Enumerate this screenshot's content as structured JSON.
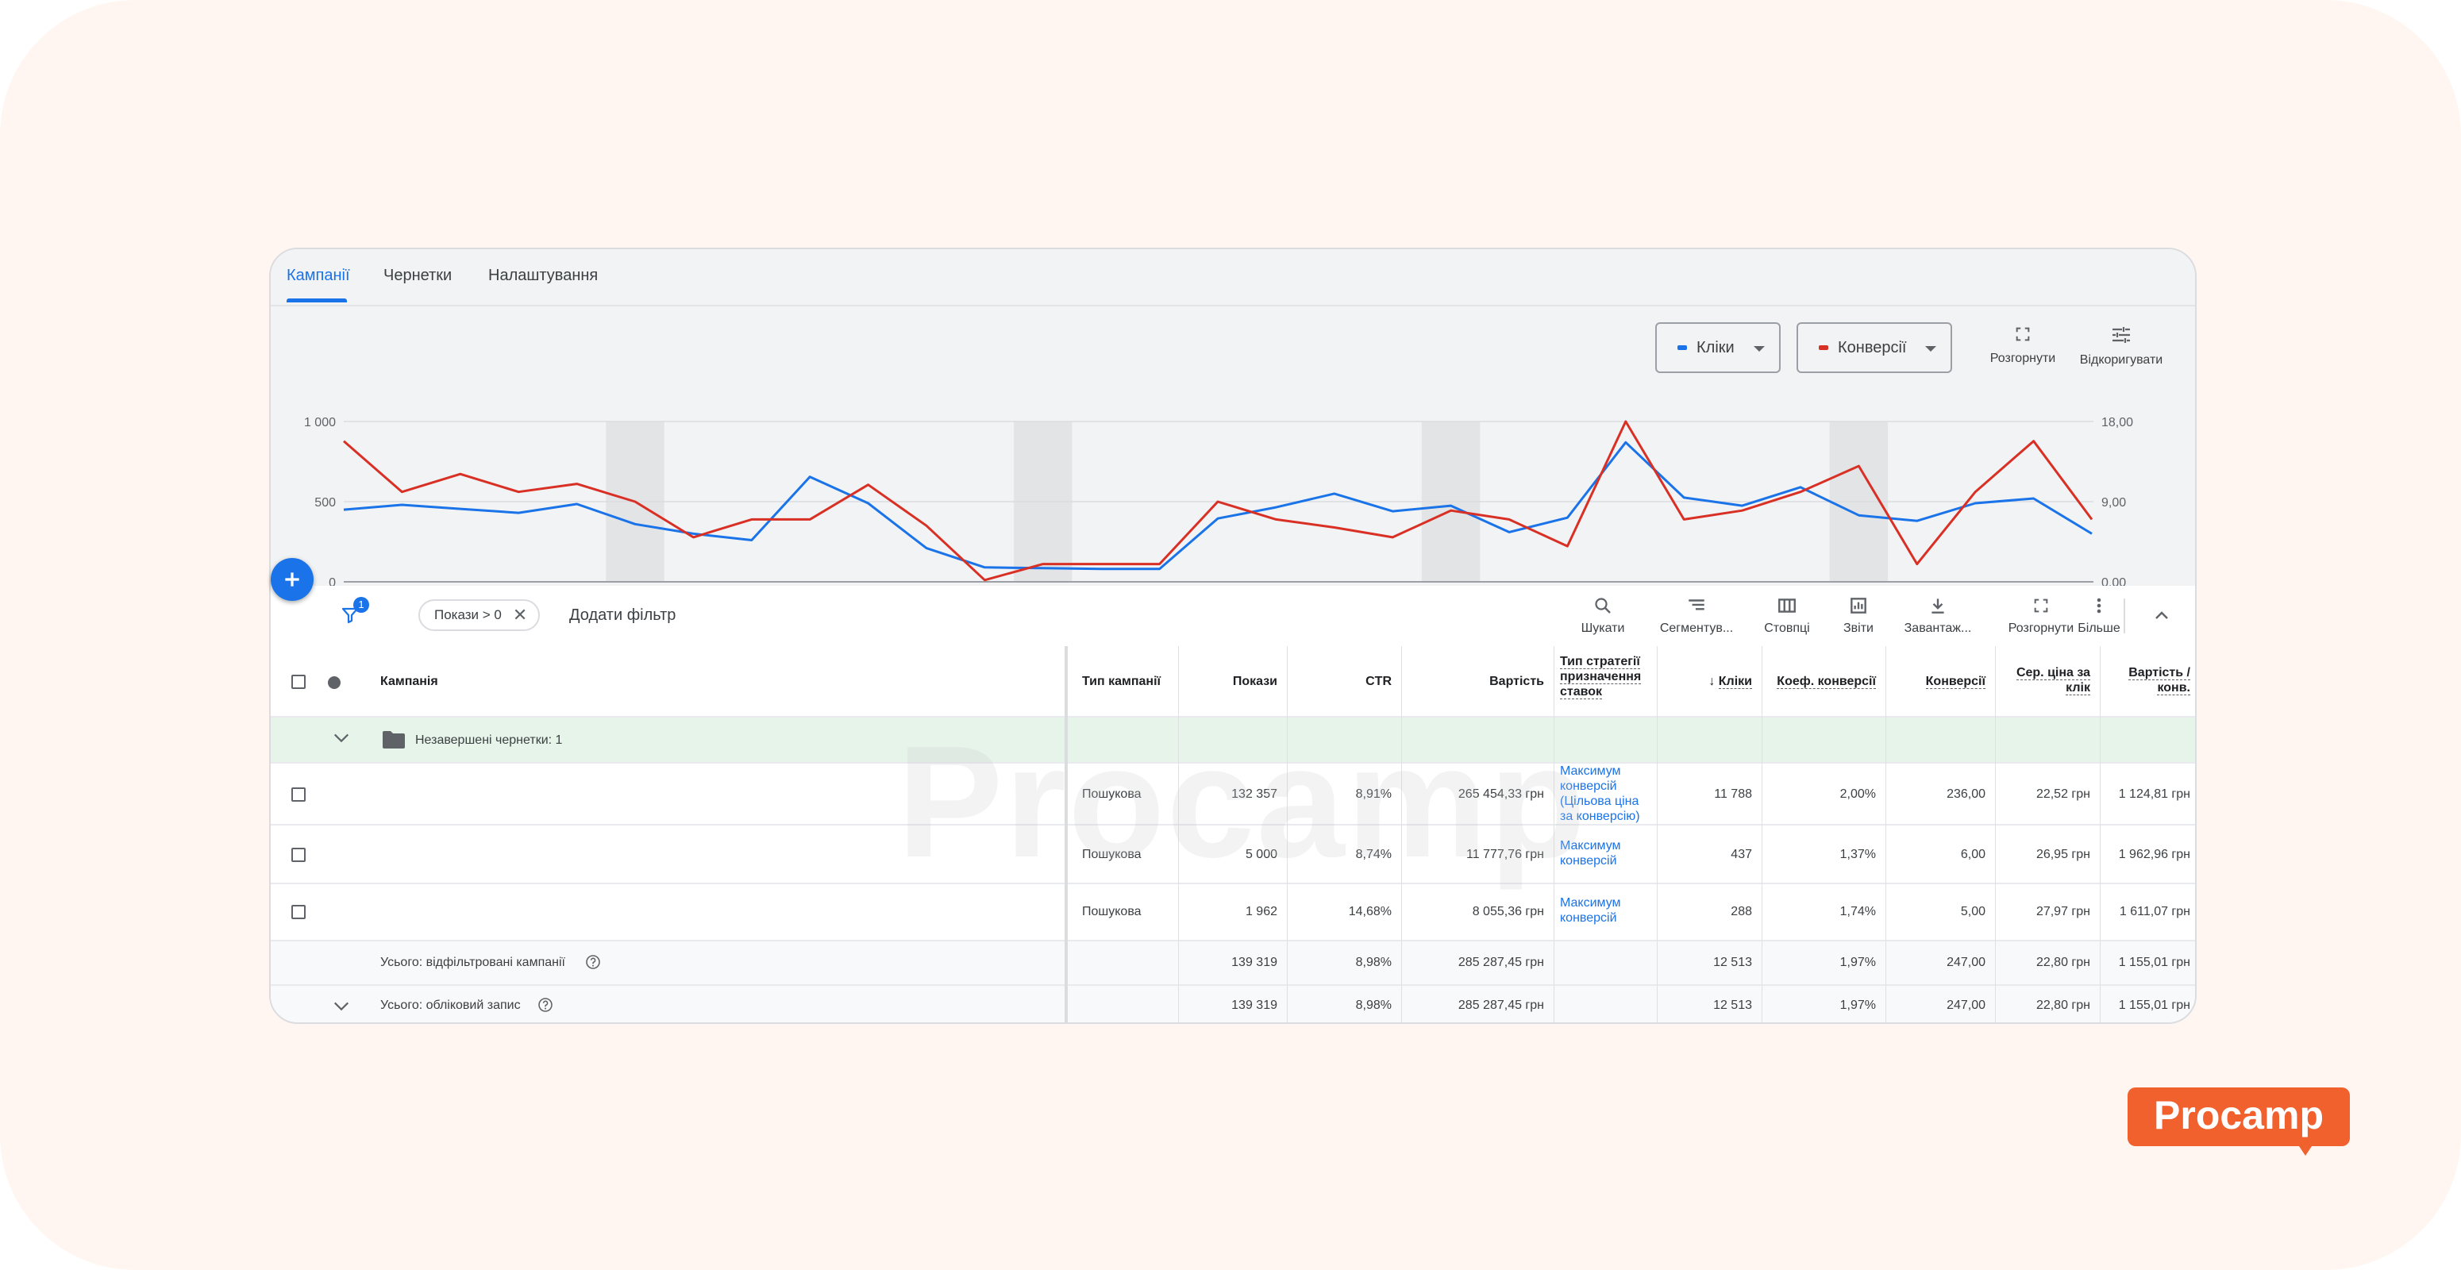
{
  "tabs": [
    {
      "label": "Кампанії",
      "active": true
    },
    {
      "label": "Чернетки",
      "active": false
    },
    {
      "label": "Налаштування",
      "active": false
    }
  ],
  "chart_controls": {
    "metric1": {
      "label": "Кліки",
      "color": "#1a73e8"
    },
    "metric2": {
      "label": "Конверсії",
      "color": "#d93025"
    },
    "expand_label": "Розгорнути",
    "adjust_label": "Відкоригувати"
  },
  "chart_data": {
    "type": "line",
    "y_left_ticks": [
      "1 000",
      "500",
      "0"
    ],
    "y_right_ticks": [
      "18,00",
      "9,00",
      "0,00"
    ],
    "y_left_range": [
      0,
      1000
    ],
    "y_right_range": [
      0,
      18
    ],
    "grid": true,
    "series": [
      {
        "name": "Кліки",
        "axis": "left",
        "color": "#1a73e8",
        "values": [
          450,
          480,
          455,
          430,
          485,
          360,
          300,
          260,
          655,
          490,
          210,
          90,
          85,
          80,
          80,
          395,
          465,
          550,
          440,
          475,
          310,
          400,
          870,
          525,
          475,
          590,
          415,
          380,
          490,
          520,
          300
        ]
      },
      {
        "name": "Конверсії",
        "axis": "right",
        "color": "#d93025",
        "values": [
          15.8,
          10.1,
          12.1,
          10.1,
          11.0,
          9.0,
          5.0,
          7.0,
          7.0,
          10.9,
          6.3,
          0.2,
          2.0,
          2.0,
          2.0,
          9.0,
          7.0,
          6.1,
          5.0,
          8.0,
          7.0,
          4.0,
          18.0,
          7.0,
          8.0,
          10.1,
          13.0,
          2.0,
          10.1,
          15.8,
          7.0
        ]
      }
    ],
    "shaded_bands": [
      5,
      12,
      19,
      26
    ]
  },
  "toolbar": {
    "filter_badge": "1",
    "chip_label": "Покази > 0",
    "add_filter": "Додати фільтр",
    "tools": [
      "Шукати",
      "Сегментув...",
      "Стовпці",
      "Звіти",
      "Завантаж...",
      "Розгорнути",
      "Більше"
    ]
  },
  "table": {
    "headers": {
      "campaign": "Кампанія",
      "type": "Тип кампанії",
      "impr": "Покази",
      "ctr": "CTR",
      "cost": "Вартість",
      "strategy": [
        "Тип стратегії",
        "призначення",
        "ставок"
      ],
      "clicks": "Кліки",
      "conv_rate": "Коеф. конверсії",
      "conv": "Конверсії",
      "cpc": [
        "Сер. ціна за",
        "клік"
      ],
      "cost_conv": [
        "Вартість /",
        "конв."
      ]
    },
    "draft_row": "Незавершені чернетки: 1",
    "rows": [
      {
        "type": "Пошукова",
        "impr": "132 357",
        "ctr": "8,91%",
        "cost": "265 454,33 грн",
        "strategy": [
          "Максимум",
          "конверсій",
          "(Цільова ціна",
          "за конверсію)"
        ],
        "clicks": "11 788",
        "conv_rate": "2,00%",
        "conv": "236,00",
        "cpc": "22,52 грн",
        "cost_conv": "1 124,81 грн"
      },
      {
        "type": "Пошукова",
        "impr": "5 000",
        "ctr": "8,74%",
        "cost": "11 777,76 грн",
        "strategy": [
          "Максимум",
          "конверсій"
        ],
        "clicks": "437",
        "conv_rate": "1,37%",
        "conv": "6,00",
        "cpc": "26,95 грн",
        "cost_conv": "1 962,96 грн"
      },
      {
        "type": "Пошукова",
        "impr": "1 962",
        "ctr": "14,68%",
        "cost": "8 055,36 грн",
        "strategy": [
          "Максимум",
          "конверсій"
        ],
        "clicks": "288",
        "conv_rate": "1,74%",
        "conv": "5,00",
        "cpc": "27,97 грн",
        "cost_conv": "1 611,07 грн"
      }
    ],
    "totals": [
      {
        "label": "Усього: відфільтровані кампанії",
        "impr": "139 319",
        "ctr": "8,98%",
        "cost": "285 287,45 грн",
        "clicks": "12 513",
        "conv_rate": "1,97%",
        "conv": "247,00",
        "cpc": "22,80 грн",
        "cost_conv": "1 155,01 грн"
      },
      {
        "label": "Усього: обліковий запис",
        "impr": "139 319",
        "ctr": "8,98%",
        "cost": "285 287,45 грн",
        "clicks": "12 513",
        "conv_rate": "1,97%",
        "conv": "247,00",
        "cpc": "22,80 грн",
        "cost_conv": "1 155,01 грн"
      }
    ]
  },
  "watermark": "Procamp",
  "brand_logo": "Procamp"
}
